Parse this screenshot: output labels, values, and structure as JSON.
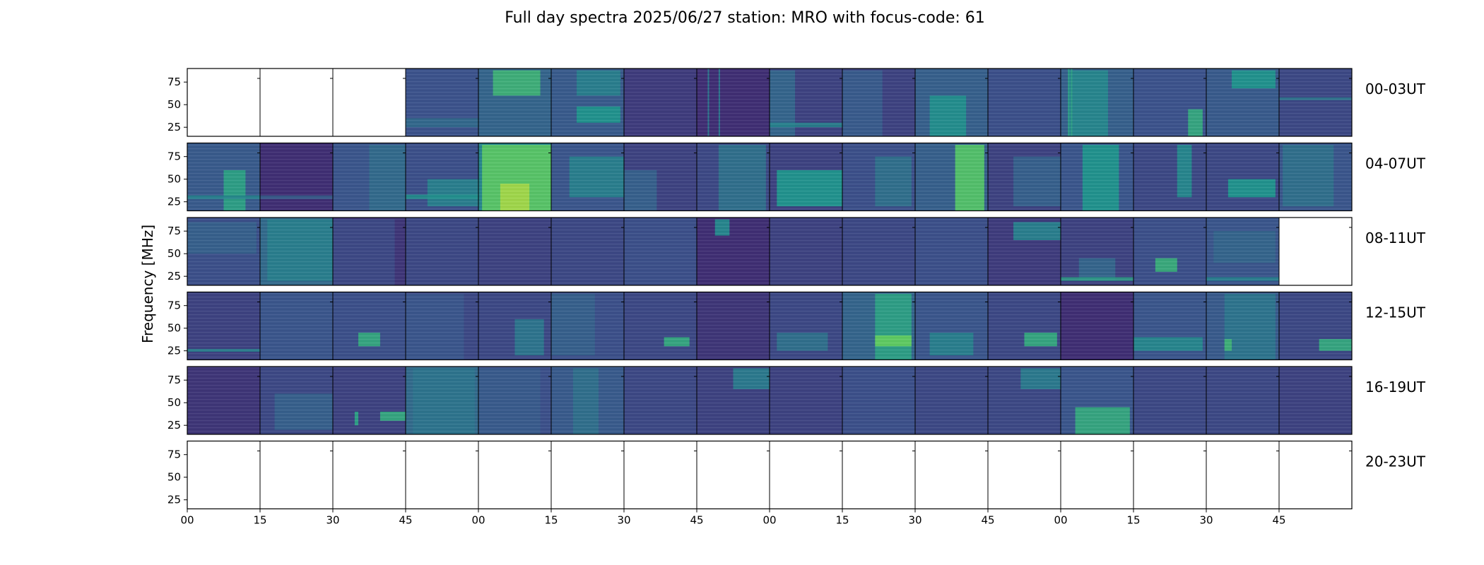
{
  "chart_data": {
    "type": "heatmap",
    "title": "Full day spectra 2025/06/27 station: MRO with focus-code: 61",
    "ylabel": "Frequency [MHz]",
    "y_ticks": [
      "25",
      "50",
      "75"
    ],
    "x_ticks": [
      "00",
      "15",
      "30",
      "45",
      "00",
      "15",
      "30",
      "45",
      "00",
      "15",
      "30",
      "45",
      "00",
      "15",
      "30",
      "45"
    ],
    "ylim": [
      15,
      90
    ],
    "colormap": "viridis",
    "colors": {
      "low": "#440154",
      "mid_low": "#3b528b",
      "mid": "#21918c",
      "mid_high": "#5ec962",
      "high": "#fde725"
    },
    "rows": [
      {
        "label": "00-03UT",
        "panels": [
          {
            "has_data": false
          },
          {
            "has_data": false
          },
          {
            "has_data": false
          },
          {
            "has_data": true,
            "base": 0.25,
            "bands": [
              [
                25,
                35,
                0.35
              ]
            ]
          },
          {
            "has_data": true,
            "base": 0.32,
            "blocks": [
              [
                0.2,
                0.85,
                60,
                88,
                0.62
              ]
            ]
          },
          {
            "has_data": true,
            "base": 0.28,
            "blocks": [
              [
                0.35,
                0.95,
                30,
                48,
                0.5
              ],
              [
                0.35,
                0.95,
                60,
                88,
                0.42
              ]
            ]
          },
          {
            "has_data": true,
            "base": 0.18
          },
          {
            "has_data": true,
            "base": 0.14,
            "lines": [
              0.15,
              0.3
            ]
          },
          {
            "has_data": true,
            "base": 0.2,
            "blocks": [
              [
                0.0,
                0.35,
                15,
                88,
                0.32
              ]
            ],
            "bands": [
              [
                25,
                30,
                0.45
              ]
            ]
          },
          {
            "has_data": true,
            "base": 0.2,
            "blocks": [
              [
                0.0,
                0.55,
                15,
                88,
                0.28
              ]
            ]
          },
          {
            "has_data": true,
            "base": 0.3,
            "blocks": [
              [
                0.2,
                0.7,
                15,
                60,
                0.48
              ]
            ]
          },
          {
            "has_data": true,
            "base": 0.24
          },
          {
            "has_data": true,
            "base": 0.3,
            "blocks": [
              [
                0.1,
                0.65,
                15,
                88,
                0.45
              ]
            ],
            "lines": [
              0.1,
              0.14
            ]
          },
          {
            "has_data": true,
            "base": 0.25,
            "blocks": [
              [
                0.75,
                0.95,
                15,
                45,
                0.58
              ]
            ]
          },
          {
            "has_data": true,
            "base": 0.28,
            "blocks": [
              [
                0.35,
                0.95,
                68,
                88,
                0.5
              ]
            ]
          },
          {
            "has_data": true,
            "base": 0.22,
            "bands": [
              [
                55,
                58,
                0.4
              ]
            ]
          }
        ]
      },
      {
        "label": "04-07UT",
        "panels": [
          {
            "has_data": true,
            "base": 0.28,
            "blocks": [
              [
                0.5,
                0.8,
                15,
                60,
                0.55
              ]
            ],
            "bands": [
              [
                28,
                32,
                0.45
              ]
            ]
          },
          {
            "has_data": true,
            "base": 0.14,
            "bands": [
              [
                28,
                32,
                0.3
              ]
            ]
          },
          {
            "has_data": true,
            "base": 0.26,
            "blocks": [
              [
                0.5,
                1.0,
                15,
                88,
                0.34
              ]
            ]
          },
          {
            "has_data": true,
            "base": 0.24,
            "blocks": [
              [
                0.3,
                1.0,
                20,
                50,
                0.42
              ]
            ],
            "bands": [
              [
                28,
                33,
                0.5
              ]
            ]
          },
          {
            "has_data": true,
            "base": 0.45,
            "blocks": [
              [
                0.05,
                1.0,
                15,
                88,
                0.72
              ],
              [
                0.3,
                0.7,
                15,
                45,
                0.85
              ]
            ]
          },
          {
            "has_data": true,
            "base": 0.26,
            "blocks": [
              [
                0.25,
                1.0,
                30,
                75,
                0.42
              ]
            ]
          },
          {
            "has_data": true,
            "base": 0.2,
            "blocks": [
              [
                0.0,
                0.45,
                15,
                60,
                0.3
              ]
            ]
          },
          {
            "has_data": true,
            "base": 0.22,
            "blocks": [
              [
                0.3,
                0.95,
                15,
                88,
                0.36
              ]
            ]
          },
          {
            "has_data": true,
            "base": 0.2,
            "blocks": [
              [
                0.1,
                1.0,
                20,
                60,
                0.5
              ]
            ]
          },
          {
            "has_data": true,
            "base": 0.24,
            "blocks": [
              [
                0.45,
                0.95,
                20,
                75,
                0.36
              ]
            ]
          },
          {
            "has_data": true,
            "base": 0.3,
            "blocks": [
              [
                0.55,
                0.95,
                15,
                88,
                0.7
              ]
            ]
          },
          {
            "has_data": true,
            "base": 0.2,
            "blocks": [
              [
                0.35,
                1.0,
                20,
                75,
                0.3
              ]
            ]
          },
          {
            "has_data": true,
            "base": 0.26,
            "blocks": [
              [
                0.3,
                0.8,
                15,
                88,
                0.5
              ]
            ]
          },
          {
            "has_data": true,
            "base": 0.22,
            "blocks": [
              [
                0.6,
                0.8,
                30,
                88,
                0.45
              ]
            ]
          },
          {
            "has_data": true,
            "base": 0.22,
            "blocks": [
              [
                0.3,
                0.95,
                30,
                50,
                0.5
              ]
            ]
          },
          {
            "has_data": true,
            "base": 0.26,
            "blocks": [
              [
                0.05,
                0.75,
                20,
                88,
                0.36
              ]
            ]
          }
        ]
      },
      {
        "label": "08-11UT",
        "panels": [
          {
            "has_data": true,
            "base": 0.24,
            "blocks": [
              [
                0.0,
                0.95,
                50,
                85,
                0.3
              ]
            ]
          },
          {
            "has_data": true,
            "base": 0.34,
            "blocks": [
              [
                0.1,
                1.0,
                20,
                88,
                0.42
              ]
            ]
          },
          {
            "has_data": true,
            "base": 0.16,
            "blocks": [
              [
                0.0,
                0.85,
                15,
                88,
                0.22
              ]
            ]
          },
          {
            "has_data": true,
            "base": 0.22
          },
          {
            "has_data": true,
            "base": 0.2
          },
          {
            "has_data": true,
            "base": 0.22
          },
          {
            "has_data": true,
            "base": 0.24
          },
          {
            "has_data": true,
            "base": 0.14,
            "blocks": [
              [
                0.25,
                0.45,
                70,
                88,
                0.45
              ]
            ]
          },
          {
            "has_data": true,
            "base": 0.2
          },
          {
            "has_data": true,
            "base": 0.22
          },
          {
            "has_data": true,
            "base": 0.24
          },
          {
            "has_data": true,
            "base": 0.18,
            "blocks": [
              [
                0.35,
                1.0,
                65,
                85,
                0.42
              ]
            ]
          },
          {
            "has_data": true,
            "base": 0.2,
            "blocks": [
              [
                0.25,
                0.75,
                20,
                45,
                0.32
              ]
            ],
            "bands": [
              [
                20,
                24,
                0.55
              ]
            ]
          },
          {
            "has_data": true,
            "base": 0.24,
            "blocks": [
              [
                0.3,
                0.6,
                30,
                45,
                0.6
              ]
            ]
          },
          {
            "has_data": true,
            "base": 0.26,
            "blocks": [
              [
                0.1,
                0.95,
                40,
                75,
                0.32
              ]
            ],
            "bands": [
              [
                20,
                24,
                0.45
              ]
            ]
          },
          {
            "has_data": false
          }
        ]
      },
      {
        "label": "12-15UT",
        "panels": [
          {
            "has_data": true,
            "base": 0.2,
            "bands": [
              [
                24,
                27,
                0.45
              ]
            ]
          },
          {
            "has_data": true,
            "base": 0.26
          },
          {
            "has_data": true,
            "base": 0.24,
            "blocks": [
              [
                0.35,
                0.65,
                30,
                45,
                0.58
              ]
            ]
          },
          {
            "has_data": true,
            "base": 0.22,
            "blocks": [
              [
                0.0,
                0.8,
                15,
                88,
                0.26
              ]
            ]
          },
          {
            "has_data": true,
            "base": 0.22,
            "blocks": [
              [
                0.5,
                0.9,
                20,
                60,
                0.38
              ]
            ]
          },
          {
            "has_data": true,
            "base": 0.24,
            "blocks": [
              [
                0.0,
                0.6,
                20,
                88,
                0.3
              ]
            ]
          },
          {
            "has_data": true,
            "base": 0.22,
            "blocks": [
              [
                0.55,
                0.9,
                30,
                40,
                0.58
              ]
            ]
          },
          {
            "has_data": true,
            "base": 0.16
          },
          {
            "has_data": true,
            "base": 0.22,
            "blocks": [
              [
                0.1,
                0.8,
                25,
                45,
                0.36
              ]
            ]
          },
          {
            "has_data": true,
            "base": 0.32,
            "blocks": [
              [
                0.45,
                0.95,
                15,
                88,
                0.55
              ],
              [
                0.45,
                0.95,
                30,
                42,
                0.75
              ]
            ]
          },
          {
            "has_data": true,
            "base": 0.26,
            "blocks": [
              [
                0.2,
                0.8,
                20,
                45,
                0.42
              ]
            ]
          },
          {
            "has_data": true,
            "base": 0.22,
            "blocks": [
              [
                0.5,
                0.95,
                30,
                45,
                0.58
              ]
            ]
          },
          {
            "has_data": true,
            "base": 0.14
          },
          {
            "has_data": true,
            "base": 0.26,
            "blocks": [
              [
                0.0,
                0.95,
                25,
                40,
                0.45
              ]
            ]
          },
          {
            "has_data": true,
            "base": 0.28,
            "blocks": [
              [
                0.25,
                0.95,
                15,
                88,
                0.38
              ],
              [
                0.25,
                0.35,
                25,
                38,
                0.62
              ]
            ]
          },
          {
            "has_data": true,
            "base": 0.22,
            "blocks": [
              [
                0.55,
                1.0,
                25,
                38,
                0.58
              ]
            ]
          }
        ]
      },
      {
        "label": "16-19UT",
        "panels": [
          {
            "has_data": true,
            "base": 0.16
          },
          {
            "has_data": true,
            "base": 0.22,
            "blocks": [
              [
                0.2,
                1.0,
                20,
                60,
                0.3
              ]
            ]
          },
          {
            "has_data": true,
            "base": 0.2,
            "blocks": [
              [
                0.65,
                1.0,
                30,
                40,
                0.58
              ],
              [
                0.3,
                0.35,
                25,
                40,
                0.55
              ]
            ]
          },
          {
            "has_data": true,
            "base": 0.34,
            "blocks": [
              [
                0.1,
                0.95,
                15,
                88,
                0.38
              ]
            ]
          },
          {
            "has_data": true,
            "base": 0.24,
            "blocks": [
              [
                0.0,
                0.85,
                15,
                88,
                0.28
              ]
            ]
          },
          {
            "has_data": true,
            "base": 0.28,
            "blocks": [
              [
                0.3,
                0.65,
                15,
                88,
                0.36
              ]
            ]
          },
          {
            "has_data": true,
            "base": 0.22
          },
          {
            "has_data": true,
            "base": 0.2,
            "blocks": [
              [
                0.5,
                1.0,
                65,
                88,
                0.4
              ]
            ]
          },
          {
            "has_data": true,
            "base": 0.2
          },
          {
            "has_data": true,
            "base": 0.24
          },
          {
            "has_data": true,
            "base": 0.22
          },
          {
            "has_data": true,
            "base": 0.22,
            "blocks": [
              [
                0.45,
                1.0,
                65,
                88,
                0.4
              ]
            ]
          },
          {
            "has_data": true,
            "base": 0.26,
            "blocks": [
              [
                0.2,
                0.95,
                15,
                45,
                0.58
              ]
            ]
          },
          {
            "has_data": true,
            "base": 0.22
          },
          {
            "has_data": true,
            "base": 0.22
          },
          {
            "has_data": true,
            "base": 0.2
          }
        ]
      },
      {
        "label": "20-23UT",
        "panels": [
          {
            "has_data": false
          },
          {
            "has_data": false
          },
          {
            "has_data": false
          },
          {
            "has_data": false
          },
          {
            "has_data": false
          },
          {
            "has_data": false
          },
          {
            "has_data": false
          },
          {
            "has_data": false
          },
          {
            "has_data": false
          },
          {
            "has_data": false
          },
          {
            "has_data": false
          },
          {
            "has_data": false
          },
          {
            "has_data": false
          },
          {
            "has_data": false
          },
          {
            "has_data": false
          },
          {
            "has_data": false
          }
        ]
      }
    ]
  }
}
